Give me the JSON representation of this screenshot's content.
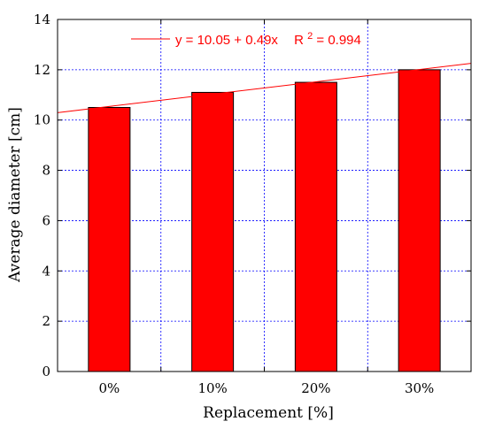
{
  "chart_data": {
    "type": "bar",
    "categories": [
      "0%",
      "10%",
      "20%",
      "30%"
    ],
    "values": [
      10.5,
      11.1,
      11.5,
      12.0
    ],
    "xlabel": "Replacement [%]",
    "ylabel": "Average diameter [cm]",
    "ylim": [
      0,
      14
    ],
    "yticks": [
      "0",
      "2",
      "4",
      "6",
      "8",
      "10",
      "12",
      "14"
    ],
    "grid": true,
    "bar_color": "#ff0000",
    "trendline": {
      "type": "linear",
      "intercept": 10.05,
      "slope": 0.49,
      "equation": "y = 10.05 + 0.49x",
      "r2_prefix": "R",
      "r2_sup": "2",
      "r2_value": "= 0.994",
      "color": "#ff0000"
    },
    "legend_position": "top"
  }
}
